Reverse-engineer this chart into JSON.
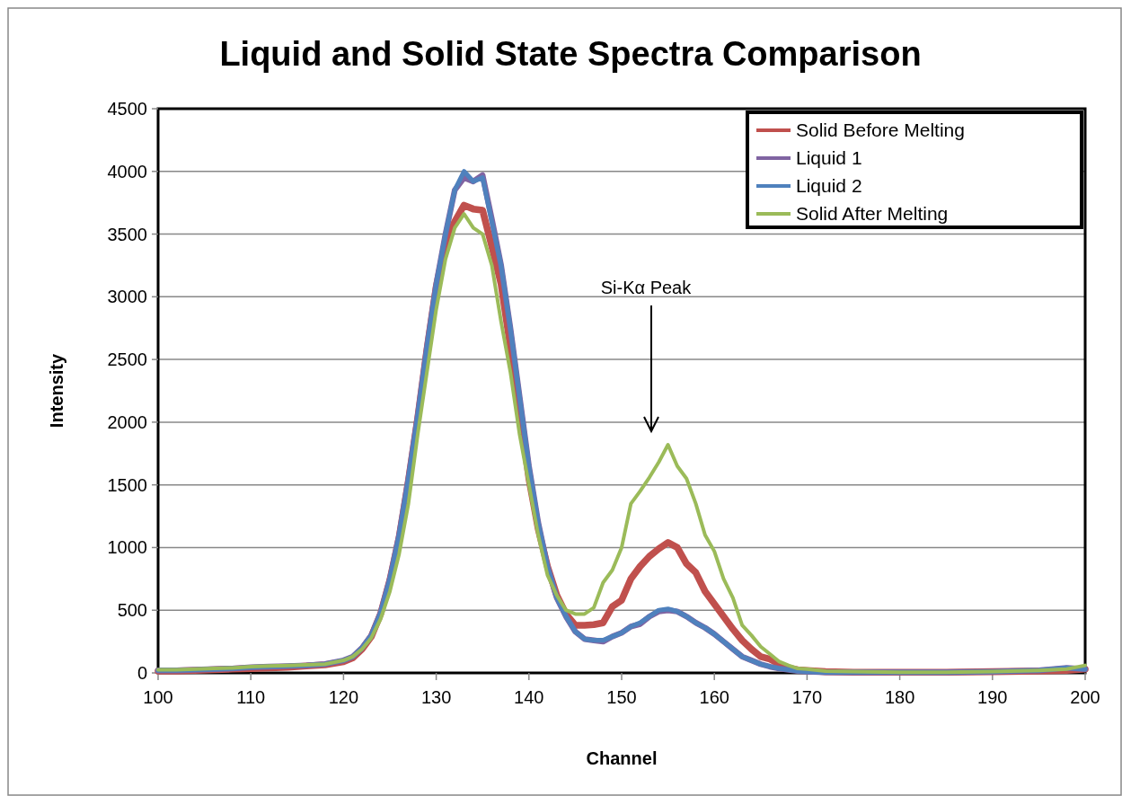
{
  "chart_data": {
    "type": "line",
    "title": "Liquid and Solid State Spectra Comparison",
    "xlabel": "Channel",
    "ylabel": "Intensity",
    "x": [
      100,
      102,
      104,
      106,
      108,
      110,
      112,
      114,
      116,
      118,
      120,
      121,
      122,
      123,
      124,
      125,
      126,
      127,
      128,
      129,
      130,
      131,
      132,
      133,
      134,
      135,
      136,
      137,
      138,
      139,
      140,
      141,
      142,
      143,
      144,
      145,
      146,
      147,
      148,
      149,
      150,
      151,
      152,
      153,
      154,
      155,
      156,
      157,
      158,
      159,
      160,
      161,
      162,
      163,
      164,
      165,
      166,
      167,
      168,
      169,
      170,
      172,
      175,
      180,
      185,
      190,
      195,
      198,
      200
    ],
    "series": [
      {
        "name": "Solid Before Melting",
        "color": "#c0504d",
        "values": [
          15,
          15,
          20,
          25,
          30,
          35,
          40,
          45,
          55,
          65,
          90,
          120,
          190,
          290,
          470,
          740,
          1080,
          1530,
          2030,
          2580,
          3080,
          3430,
          3600,
          3730,
          3700,
          3690,
          3400,
          3100,
          2600,
          2100,
          1550,
          1150,
          850,
          620,
          470,
          380,
          380,
          385,
          400,
          530,
          580,
          750,
          850,
          930,
          990,
          1040,
          1000,
          870,
          800,
          650,
          550,
          450,
          350,
          260,
          190,
          130,
          110,
          70,
          40,
          25,
          20,
          10,
          5,
          5,
          5,
          10,
          15,
          20,
          30
        ]
      },
      {
        "name": "Liquid 1",
        "color": "#8064a2",
        "values": [
          20,
          20,
          25,
          30,
          35,
          45,
          50,
          55,
          60,
          70,
          100,
          130,
          200,
          300,
          480,
          750,
          1100,
          1550,
          2050,
          2600,
          3100,
          3500,
          3850,
          3950,
          3920,
          3970,
          3620,
          3250,
          2750,
          2200,
          1650,
          1200,
          850,
          600,
          450,
          330,
          270,
          260,
          250,
          290,
          320,
          370,
          390,
          450,
          490,
          500,
          490,
          450,
          400,
          360,
          310,
          250,
          190,
          130,
          100,
          70,
          50,
          35,
          25,
          15,
          10,
          5,
          5,
          5,
          5,
          10,
          20,
          40,
          30
        ]
      },
      {
        "name": "Liquid 2",
        "color": "#4f81bd",
        "values": [
          20,
          20,
          25,
          30,
          35,
          45,
          50,
          55,
          60,
          70,
          100,
          130,
          200,
          300,
          480,
          750,
          1100,
          1550,
          2050,
          2600,
          3100,
          3500,
          3850,
          4000,
          3920,
          3950,
          3600,
          3250,
          2750,
          2200,
          1650,
          1200,
          850,
          600,
          450,
          330,
          270,
          260,
          260,
          290,
          320,
          370,
          400,
          450,
          500,
          510,
          490,
          450,
          400,
          360,
          310,
          250,
          190,
          130,
          100,
          70,
          50,
          35,
          25,
          15,
          10,
          5,
          5,
          5,
          5,
          10,
          20,
          40,
          30
        ]
      },
      {
        "name": "Solid After Melting",
        "color": "#9bbb59",
        "values": [
          25,
          25,
          30,
          35,
          40,
          50,
          55,
          60,
          65,
          70,
          100,
          130,
          190,
          280,
          430,
          650,
          950,
          1350,
          1900,
          2400,
          2900,
          3300,
          3550,
          3660,
          3550,
          3500,
          3250,
          2800,
          2400,
          1900,
          1500,
          1100,
          780,
          620,
          500,
          470,
          470,
          520,
          720,
          820,
          1000,
          1350,
          1450,
          1560,
          1680,
          1820,
          1650,
          1550,
          1350,
          1100,
          970,
          750,
          600,
          380,
          300,
          210,
          150,
          90,
          60,
          35,
          30,
          15,
          10,
          5,
          5,
          10,
          20,
          30,
          60
        ]
      }
    ],
    "xlim": [
      100,
      200
    ],
    "xticks": [
      100,
      110,
      120,
      130,
      140,
      150,
      160,
      170,
      180,
      190,
      200
    ],
    "ylim": [
      0,
      4500
    ],
    "yticks": [
      0,
      500,
      1000,
      1500,
      2000,
      2500,
      3000,
      3500,
      4000,
      4500
    ],
    "grid": "y",
    "legend": "top right",
    "marker": "none",
    "line_style": "solid",
    "annotations": [
      "Si-Kα Peak"
    ]
  }
}
